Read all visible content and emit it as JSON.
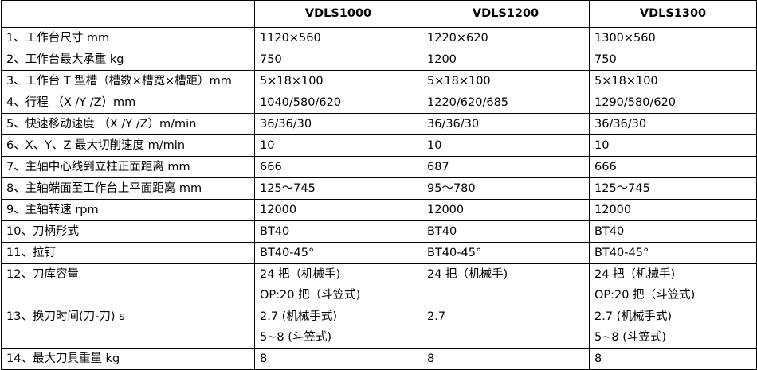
{
  "table": {
    "header": [
      "VDLS1000",
      "VDLS1200",
      "VDLS1300"
    ],
    "rows": [
      [
        "1、工作台尺寸 mm",
        "1120×560",
        "1220×620",
        "1300×560"
      ],
      [
        "2、工作台最大承重 kg",
        "750",
        "1200",
        "750"
      ],
      [
        "3、工作台 T 型槽（槽数×槽宽×槽距）mm",
        "5×18×100",
        "5×18×100",
        "5×18×100"
      ],
      [
        "4、行程 （X /Y /Z）mm",
        "1040/580/620",
        "1220/620/685",
        "1290/580/620"
      ],
      [
        "5、快速移动速度 （X /Y /Z）m/min",
        "36/36/30",
        "36/36/30",
        "36/36/30"
      ],
      [
        "6、X、Y、Z 最大切削速度 m/min",
        "10",
        "10",
        "10"
      ],
      [
        "7、主轴中心线到立柱正面距离 mm",
        "666",
        "687",
        "666"
      ],
      [
        "8、主轴端面至工作台上平面距离 mm",
        "125～745",
        "95～780",
        "125～745"
      ],
      [
        "9、主轴转速 rpm",
        "12000",
        "12000",
        "12000"
      ],
      [
        "10、刀柄形式",
        "BT40",
        "BT40",
        "BT40"
      ],
      [
        "11、拉钉",
        "BT40-45°",
        "BT40-45°",
        "BT40-45°"
      ],
      [
        "12、刀库容量",
        [
          "24 把（机械手)",
          "OP:20 把（斗笠式)"
        ],
        "24 把（机械手)",
        [
          "24 把（机械手)",
          "OP:20 把（斗笠式)"
        ]
      ],
      [
        "13、换刀时间(刀-刀) s",
        [
          "2.7 (机械手式)",
          "5~8 (斗笠式)"
        ],
        "2.7",
        [
          "2.7 (机械手式)",
          "5~8 (斗笠式)"
        ]
      ],
      [
        "14、最大刀具重量 kg",
        "8",
        "8",
        "8"
      ]
    ]
  }
}
